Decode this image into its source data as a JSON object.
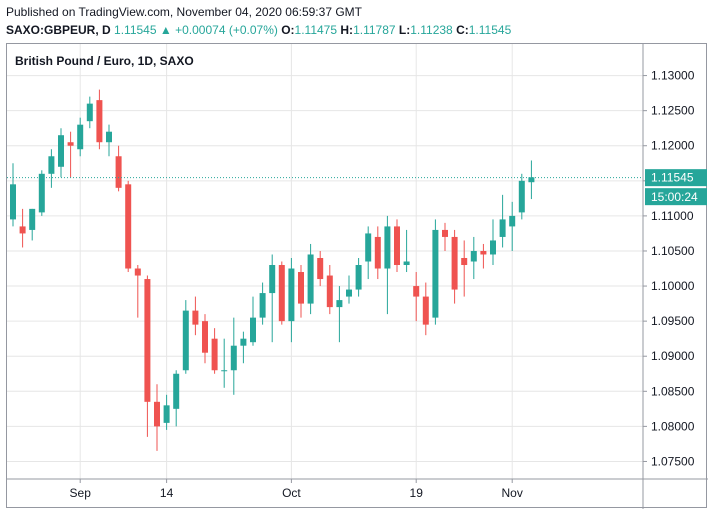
{
  "header": {
    "published": "Published on TradingView.com, November 04, 2020 06:59:37 GMT",
    "symbol": "SAXO:GBPEUR, D",
    "last": "1.11545",
    "change_arrow": "▲",
    "change": "+0.00074 (+0.07%)",
    "open_label": "O:",
    "open": "1.11475",
    "high_label": "H:",
    "high": "1.11787",
    "low_label": "L:",
    "low": "1.11238",
    "close_label": "C:",
    "close": "1.11545"
  },
  "colors": {
    "up": "#26a69a",
    "down": "#ef5350",
    "grid": "#e6e6e6",
    "axis": "#9598a1",
    "tag_bg": "#26a69a"
  },
  "chart_data": {
    "type": "candlestick",
    "title": "British Pound / Euro, 1D, SAXO",
    "ylim": [
      1.0725,
      1.1345
    ],
    "y_ticks": [
      "1.13000",
      "1.12500",
      "1.12000",
      "1.11500",
      "1.11000",
      "1.10500",
      "1.10000",
      "1.09500",
      "1.09000",
      "1.08500",
      "1.08000",
      "1.07500"
    ],
    "x_ticks": [
      {
        "label": "Sep",
        "index": 7
      },
      {
        "label": "14",
        "index": 16
      },
      {
        "label": "Oct",
        "index": 29
      },
      {
        "label": "19",
        "index": 42
      },
      {
        "label": "Nov",
        "index": 52
      }
    ],
    "candles": [
      {
        "o": 1.1095,
        "h": 1.1175,
        "l": 1.1085,
        "c": 1.1145
      },
      {
        "o": 1.1085,
        "h": 1.111,
        "l": 1.1055,
        "c": 1.1075
      },
      {
        "o": 1.108,
        "h": 1.111,
        "l": 1.1065,
        "c": 1.111
      },
      {
        "o": 1.1105,
        "h": 1.1165,
        "l": 1.11,
        "c": 1.116
      },
      {
        "o": 1.116,
        "h": 1.1195,
        "l": 1.114,
        "c": 1.1185
      },
      {
        "o": 1.117,
        "h": 1.1225,
        "l": 1.1155,
        "c": 1.1215
      },
      {
        "o": 1.1205,
        "h": 1.122,
        "l": 1.1155,
        "c": 1.12
      },
      {
        "o": 1.1195,
        "h": 1.124,
        "l": 1.1185,
        "c": 1.123
      },
      {
        "o": 1.1235,
        "h": 1.127,
        "l": 1.1225,
        "c": 1.126
      },
      {
        "o": 1.1265,
        "h": 1.128,
        "l": 1.1195,
        "c": 1.1205
      },
      {
        "o": 1.1205,
        "h": 1.123,
        "l": 1.1185,
        "c": 1.122
      },
      {
        "o": 1.1185,
        "h": 1.12,
        "l": 1.1135,
        "c": 1.114
      },
      {
        "o": 1.1145,
        "h": 1.115,
        "l": 1.102,
        "c": 1.1025
      },
      {
        "o": 1.1025,
        "h": 1.103,
        "l": 1.0955,
        "c": 1.1015
      },
      {
        "o": 1.101,
        "h": 1.1015,
        "l": 1.0785,
        "c": 1.0835
      },
      {
        "o": 1.0835,
        "h": 1.086,
        "l": 1.0765,
        "c": 1.08
      },
      {
        "o": 1.0805,
        "h": 1.0845,
        "l": 1.0795,
        "c": 1.083
      },
      {
        "o": 1.0825,
        "h": 1.088,
        "l": 1.08,
        "c": 1.0875
      },
      {
        "o": 1.088,
        "h": 1.098,
        "l": 1.0875,
        "c": 1.0965
      },
      {
        "o": 1.0965,
        "h": 1.0985,
        "l": 1.093,
        "c": 1.0945
      },
      {
        "o": 1.095,
        "h": 1.096,
        "l": 1.089,
        "c": 1.0905
      },
      {
        "o": 1.0925,
        "h": 1.094,
        "l": 1.0875,
        "c": 1.088
      },
      {
        "o": 1.088,
        "h": 1.0925,
        "l": 1.0855,
        "c": 1.088
      },
      {
        "o": 1.088,
        "h": 1.0955,
        "l": 1.0845,
        "c": 1.0915
      },
      {
        "o": 1.0915,
        "h": 1.0935,
        "l": 1.089,
        "c": 1.0925
      },
      {
        "o": 1.092,
        "h": 1.0985,
        "l": 1.0915,
        "c": 1.0955
      },
      {
        "o": 1.0955,
        "h": 1.1005,
        "l": 1.0945,
        "c": 1.099
      },
      {
        "o": 1.099,
        "h": 1.1045,
        "l": 1.092,
        "c": 1.103
      },
      {
        "o": 1.103,
        "h": 1.1035,
        "l": 1.0945,
        "c": 1.095
      },
      {
        "o": 1.095,
        "h": 1.104,
        "l": 1.092,
        "c": 1.1025
      },
      {
        "o": 1.102,
        "h": 1.103,
        "l": 1.0955,
        "c": 1.0975
      },
      {
        "o": 1.0975,
        "h": 1.106,
        "l": 1.096,
        "c": 1.1045
      },
      {
        "o": 1.104,
        "h": 1.105,
        "l": 1.1,
        "c": 1.101
      },
      {
        "o": 1.1015,
        "h": 1.103,
        "l": 1.096,
        "c": 1.097
      },
      {
        "o": 1.097,
        "h": 1.1,
        "l": 1.092,
        "c": 1.098
      },
      {
        "o": 1.0985,
        "h": 1.1015,
        "l": 1.0975,
        "c": 1.0995
      },
      {
        "o": 1.0995,
        "h": 1.104,
        "l": 1.0985,
        "c": 1.103
      },
      {
        "o": 1.1035,
        "h": 1.1085,
        "l": 1.101,
        "c": 1.1075
      },
      {
        "o": 1.107,
        "h": 1.1085,
        "l": 1.101,
        "c": 1.1025
      },
      {
        "o": 1.1025,
        "h": 1.11,
        "l": 1.096,
        "c": 1.1085
      },
      {
        "o": 1.1085,
        "h": 1.1095,
        "l": 1.102,
        "c": 1.103
      },
      {
        "o": 1.103,
        "h": 1.108,
        "l": 1.102,
        "c": 1.1035
      },
      {
        "o": 1.1,
        "h": 1.102,
        "l": 1.095,
        "c": 1.0985
      },
      {
        "o": 1.0985,
        "h": 1.1005,
        "l": 1.093,
        "c": 1.0945
      },
      {
        "o": 1.0955,
        "h": 1.1095,
        "l": 1.0945,
        "c": 1.108
      },
      {
        "o": 1.108,
        "h": 1.109,
        "l": 1.105,
        "c": 1.107
      },
      {
        "o": 1.107,
        "h": 1.108,
        "l": 1.0975,
        "c": 1.0995
      },
      {
        "o": 1.104,
        "h": 1.1065,
        "l": 1.0985,
        "c": 1.103
      },
      {
        "o": 1.1035,
        "h": 1.107,
        "l": 1.101,
        "c": 1.105
      },
      {
        "o": 1.105,
        "h": 1.106,
        "l": 1.1025,
        "c": 1.1045
      },
      {
        "o": 1.1045,
        "h": 1.1095,
        "l": 1.103,
        "c": 1.1065
      },
      {
        "o": 1.107,
        "h": 1.113,
        "l": 1.1055,
        "c": 1.1095
      },
      {
        "o": 1.1085,
        "h": 1.112,
        "l": 1.105,
        "c": 1.11
      },
      {
        "o": 1.1105,
        "h": 1.116,
        "l": 1.1095,
        "c": 1.115
      },
      {
        "o": 1.1148,
        "h": 1.1179,
        "l": 1.1124,
        "c": 1.1155
      }
    ],
    "last_price_tag": "1.11545",
    "countdown_tag": "15:00:24"
  }
}
